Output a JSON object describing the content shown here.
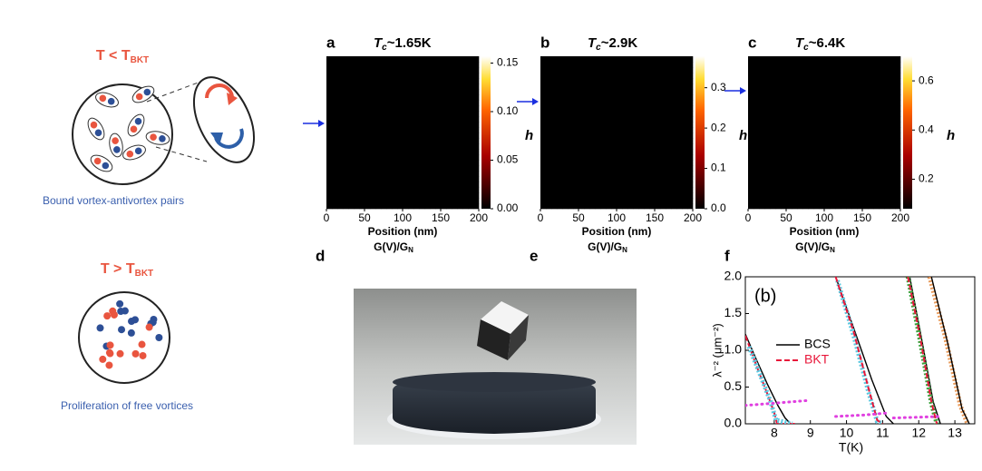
{
  "diagrams": [
    {
      "title": "T < T",
      "title_sub": "BKT",
      "caption": "Bound vortex-antivortex pairs"
    },
    {
      "title": "T > T",
      "title_sub": "BKT",
      "caption": "Proliferation of free vortices"
    }
  ],
  "maps": [
    {
      "letter": "a",
      "title": "T",
      "title_sub": "c",
      "title_rest": "~1.65K",
      "xlabel": "Position (nm)",
      "xlim": [
        0,
        200
      ],
      "xticks": [
        0,
        50,
        100,
        150,
        200
      ],
      "colorbar_label": "h",
      "clim": [
        0,
        0.157
      ],
      "cticks": [
        {
          "value": 0,
          "label": "0.00"
        },
        {
          "value": 0.05,
          "label": "0.05"
        },
        {
          "value": 0.1,
          "label": "0.10"
        },
        {
          "value": 0.15,
          "label": "0.15"
        }
      ],
      "caption": "G(V)/G",
      "caption_sub": "N",
      "below_letter": "d"
    },
    {
      "letter": "b",
      "title": "T",
      "title_sub": "c",
      "title_rest": "~2.9K",
      "xlabel": "Position (nm)",
      "xlim": [
        0,
        200
      ],
      "xticks": [
        0,
        50,
        100,
        150,
        200
      ],
      "colorbar_label": "h",
      "clim": [
        0,
        0.378
      ],
      "cticks": [
        {
          "value": 0,
          "label": "0.0"
        },
        0.1,
        0.2,
        0.3
      ],
      "caption": "G(V)/G",
      "caption_sub": "N",
      "below_letter": "e"
    },
    {
      "letter": "c",
      "title": "T",
      "title_sub": "c",
      "title_rest": "~6.4K",
      "xlabel": "Position (nm)",
      "xlim": [
        0,
        200
      ],
      "xticks": [
        0,
        50,
        100,
        150,
        200
      ],
      "colorbar_label": "h",
      "clim": [
        0.08,
        0.7
      ],
      "cticks": [
        0.2,
        0.4,
        0.6
      ],
      "caption": "G(V)/G",
      "caption_sub": "N",
      "below_letter": "f"
    }
  ],
  "chart_data": {
    "type": "line",
    "label": "(b)",
    "xlabel": "T(K)",
    "ylabel": "λ⁻² (μm⁻²)",
    "xlim": [
      7.2,
      13.55
    ],
    "xticks": [
      8,
      9,
      10,
      11,
      12,
      13
    ],
    "ylim": [
      0,
      2
    ],
    "yticks": [
      {
        "value": 0,
        "label": "0.0"
      },
      0.5,
      {
        "value": 1,
        "label": "1.0"
      },
      1.5,
      {
        "value": 2,
        "label": "2.0"
      }
    ],
    "series": [
      {
        "name": "BCS",
        "color": "#000000",
        "style": "solid",
        "x": [
          7.2,
          7.5,
          7.8,
          8.1,
          8.3,
          8.45
        ],
        "values": [
          1.22,
          0.88,
          0.55,
          0.25,
          0.08,
          0
        ]
      },
      {
        "name": "BKT",
        "color": "#e8173a",
        "style": "dashed",
        "x": [
          7.2,
          7.5,
          7.8,
          8.0,
          8.08,
          8.6
        ],
        "values": [
          1.2,
          0.8,
          0.42,
          0.15,
          0,
          0
        ]
      },
      {
        "color": "#5bc8e0",
        "style": "points",
        "x": [
          7.3,
          7.6,
          7.9,
          8.05,
          8.5
        ],
        "values": [
          1.05,
          0.68,
          0.3,
          0.05,
          0
        ]
      },
      {
        "color": "#000000",
        "style": "solid",
        "x": [
          9.7,
          10.2,
          10.7,
          11.1,
          11.3
        ],
        "values": [
          2,
          1.3,
          0.6,
          0.1,
          0
        ]
      },
      {
        "color": "#5bc8e0",
        "style": "points",
        "x": [
          9.75,
          10.2,
          10.6,
          10.85,
          11.0
        ],
        "values": [
          1.95,
          1.2,
          0.45,
          0.03,
          0
        ]
      },
      {
        "color": "#e8173a",
        "style": "dashed",
        "x": [
          9.7,
          10.2,
          10.6,
          10.85,
          11.0
        ],
        "values": [
          2,
          1.25,
          0.5,
          0.05,
          0
        ]
      },
      {
        "color": "#000000",
        "style": "solid",
        "x": [
          11.75,
          12.1,
          12.4,
          12.6
        ],
        "values": [
          2,
          1.1,
          0.3,
          0
        ]
      },
      {
        "color": "#3aa03a",
        "style": "points",
        "x": [
          11.7,
          12.05,
          12.35,
          12.5
        ],
        "values": [
          2,
          1.1,
          0.28,
          0
        ]
      },
      {
        "color": "#e8173a",
        "style": "dashed",
        "x": [
          11.7,
          12.05,
          12.35,
          12.5
        ],
        "values": [
          2,
          1.15,
          0.3,
          0
        ]
      },
      {
        "color": "#e89a5a",
        "style": "points",
        "x": [
          12.3,
          12.75,
          13.15,
          13.35
        ],
        "values": [
          2,
          1.15,
          0.25,
          0
        ]
      },
      {
        "color": "#000000",
        "style": "solid",
        "x": [
          12.35,
          12.8,
          13.2,
          13.4
        ],
        "values": [
          2,
          1.1,
          0.2,
          0
        ]
      },
      {
        "color": "#e040e0",
        "style": "dotted",
        "x": [
          7.2,
          8.0,
          9.0
        ],
        "values": [
          0.25,
          0.28,
          0.32
        ]
      },
      {
        "color": "#e040e0",
        "style": "dotted",
        "x": [
          9.7,
          10.5,
          11.2
        ],
        "values": [
          0.1,
          0.12,
          0.15
        ]
      },
      {
        "color": "#e040e0",
        "style": "dotted",
        "x": [
          11.3,
          12.0,
          12.6
        ],
        "values": [
          0.08,
          0.09,
          0.1
        ]
      }
    ]
  }
}
